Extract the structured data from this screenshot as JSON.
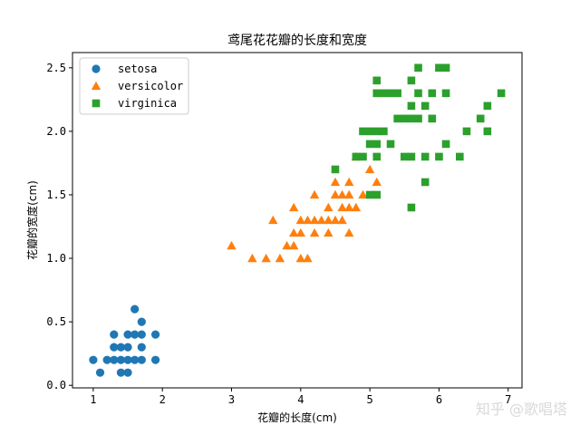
{
  "watermark": "知乎 @歌唱塔",
  "chart_data": {
    "type": "scatter",
    "title": "鸢尾花花瓣的长度和宽度",
    "xlabel": "花瓣的长度(cm)",
    "ylabel": "花瓣的宽度(cm)",
    "xlim": [
      0.7,
      7.2
    ],
    "ylim": [
      -0.02,
      2.62
    ],
    "xticks": [
      1,
      2,
      3,
      4,
      5,
      6,
      7
    ],
    "yticks": [
      0.0,
      0.5,
      1.0,
      1.5,
      2.0,
      2.5
    ],
    "ytick_labels": [
      "0.0",
      "0.5",
      "1.0",
      "1.5",
      "2.0",
      "2.5"
    ],
    "grid": false,
    "legend_position": "top-left",
    "series": [
      {
        "name": "setosa",
        "marker": "circle",
        "color": "#1f77b4",
        "points": [
          [
            1.0,
            0.2
          ],
          [
            1.1,
            0.1
          ],
          [
            1.2,
            0.2
          ],
          [
            1.3,
            0.2
          ],
          [
            1.3,
            0.3
          ],
          [
            1.3,
            0.4
          ],
          [
            1.4,
            0.1
          ],
          [
            1.4,
            0.2
          ],
          [
            1.4,
            0.3
          ],
          [
            1.5,
            0.1
          ],
          [
            1.5,
            0.2
          ],
          [
            1.5,
            0.3
          ],
          [
            1.5,
            0.4
          ],
          [
            1.6,
            0.2
          ],
          [
            1.6,
            0.4
          ],
          [
            1.6,
            0.6
          ],
          [
            1.7,
            0.2
          ],
          [
            1.7,
            0.3
          ],
          [
            1.7,
            0.4
          ],
          [
            1.7,
            0.5
          ],
          [
            1.9,
            0.2
          ],
          [
            1.9,
            0.4
          ]
        ]
      },
      {
        "name": "versicolor",
        "marker": "triangle",
        "color": "#ff7f0e",
        "points": [
          [
            3.0,
            1.1
          ],
          [
            3.3,
            1.0
          ],
          [
            3.5,
            1.0
          ],
          [
            3.6,
            1.3
          ],
          [
            3.7,
            1.0
          ],
          [
            3.8,
            1.1
          ],
          [
            3.9,
            1.1
          ],
          [
            3.9,
            1.2
          ],
          [
            3.9,
            1.4
          ],
          [
            4.0,
            1.0
          ],
          [
            4.0,
            1.2
          ],
          [
            4.0,
            1.3
          ],
          [
            4.1,
            1.0
          ],
          [
            4.1,
            1.3
          ],
          [
            4.2,
            1.2
          ],
          [
            4.2,
            1.3
          ],
          [
            4.2,
            1.5
          ],
          [
            4.3,
            1.3
          ],
          [
            4.4,
            1.2
          ],
          [
            4.4,
            1.3
          ],
          [
            4.4,
            1.4
          ],
          [
            4.5,
            1.3
          ],
          [
            4.5,
            1.5
          ],
          [
            4.5,
            1.6
          ],
          [
            4.6,
            1.3
          ],
          [
            4.6,
            1.4
          ],
          [
            4.6,
            1.5
          ],
          [
            4.7,
            1.2
          ],
          [
            4.7,
            1.4
          ],
          [
            4.7,
            1.5
          ],
          [
            4.7,
            1.6
          ],
          [
            4.8,
            1.4
          ],
          [
            4.8,
            1.8
          ],
          [
            4.9,
            1.5
          ],
          [
            5.0,
            1.7
          ],
          [
            5.1,
            1.6
          ]
        ]
      },
      {
        "name": "virginica",
        "marker": "square",
        "color": "#2ca02c",
        "points": [
          [
            4.5,
            1.7
          ],
          [
            4.8,
            1.8
          ],
          [
            4.9,
            1.8
          ],
          [
            4.9,
            2.0
          ],
          [
            5.0,
            1.5
          ],
          [
            5.0,
            1.9
          ],
          [
            5.0,
            2.0
          ],
          [
            5.1,
            1.5
          ],
          [
            5.1,
            1.8
          ],
          [
            5.1,
            1.9
          ],
          [
            5.1,
            2.0
          ],
          [
            5.1,
            2.3
          ],
          [
            5.1,
            2.4
          ],
          [
            5.2,
            2.0
          ],
          [
            5.2,
            2.3
          ],
          [
            5.3,
            1.9
          ],
          [
            5.3,
            2.3
          ],
          [
            5.4,
            2.1
          ],
          [
            5.4,
            2.3
          ],
          [
            5.5,
            1.8
          ],
          [
            5.5,
            2.1
          ],
          [
            5.6,
            1.4
          ],
          [
            5.6,
            1.8
          ],
          [
            5.6,
            2.1
          ],
          [
            5.6,
            2.2
          ],
          [
            5.6,
            2.4
          ],
          [
            5.7,
            2.1
          ],
          [
            5.7,
            2.3
          ],
          [
            5.7,
            2.5
          ],
          [
            5.8,
            1.6
          ],
          [
            5.8,
            1.8
          ],
          [
            5.8,
            2.2
          ],
          [
            5.9,
            2.1
          ],
          [
            5.9,
            2.3
          ],
          [
            6.0,
            1.8
          ],
          [
            6.0,
            2.5
          ],
          [
            6.1,
            1.9
          ],
          [
            6.1,
            2.3
          ],
          [
            6.1,
            2.5
          ],
          [
            6.3,
            1.8
          ],
          [
            6.4,
            2.0
          ],
          [
            6.6,
            2.1
          ],
          [
            6.7,
            2.0
          ],
          [
            6.7,
            2.2
          ],
          [
            6.9,
            2.3
          ]
        ]
      }
    ]
  }
}
